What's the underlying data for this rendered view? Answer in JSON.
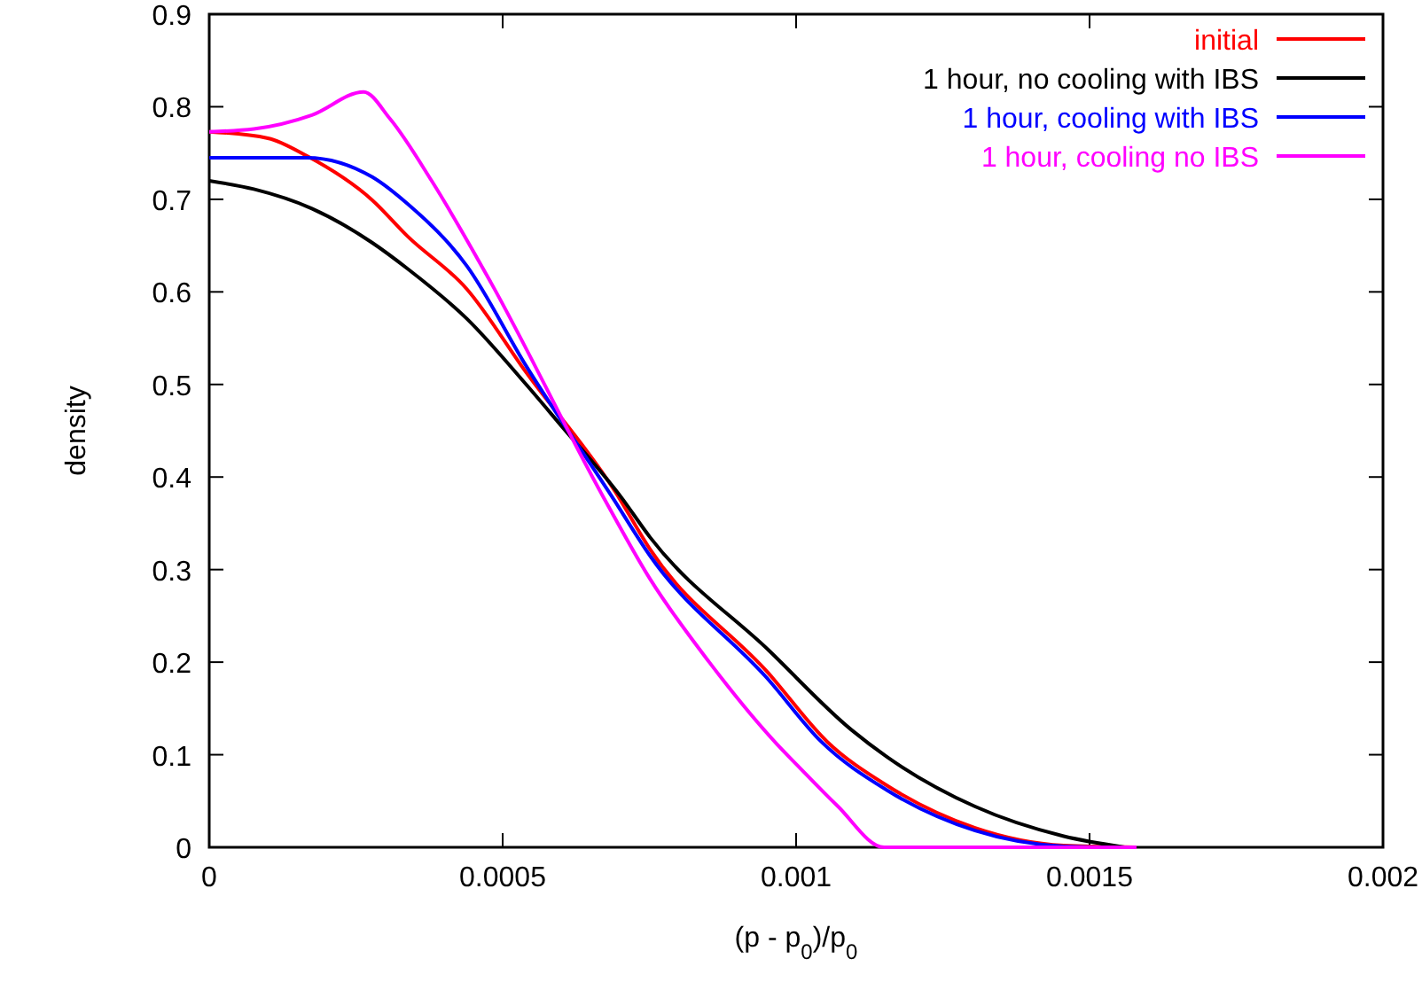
{
  "chart_data": {
    "type": "line",
    "xlabel": "(p - p$_{0}$)/p$_{0}$",
    "ylabel": "density",
    "xlim": [
      0,
      0.002
    ],
    "xticks": [
      0,
      0.0005,
      0.001,
      0.0015,
      0.002
    ],
    "ylim": [
      0,
      0.9
    ],
    "yticks": [
      0,
      0.1,
      0.2,
      0.3,
      0.4,
      0.5,
      0.6,
      0.7,
      0.8,
      0.9
    ],
    "grid": false,
    "legend": "top right",
    "marker": "none",
    "line_style": "solid",
    "series": [
      {
        "name": "initial",
        "color": "#ff0000",
        "x": [
          0,
          0.0001,
          0.000166,
          0.000278,
          0.000338,
          0.000439,
          0.00054,
          0.000691,
          0.000751,
          0.000953,
          0.001053,
          0.001154,
          0.001305,
          0.001456,
          0.00158
        ],
        "values": [
          0.773,
          0.766,
          0.747,
          0.699,
          0.66,
          0.603,
          0.513,
          0.385,
          0.322,
          0.188,
          0.114,
          0.067,
          0.021,
          0.002,
          0
        ]
      },
      {
        "name": "1 hour, no cooling with IBS",
        "color": "#000000",
        "x": [
          0,
          7.6e-05,
          0.000175,
          0.000278,
          0.000338,
          0.000439,
          0.00054,
          0.000595,
          0.000701,
          0.000751,
          0.000953,
          0.001094,
          0.001154,
          0.001305,
          0.001456,
          0.00156
        ],
        "values": [
          0.72,
          0.711,
          0.69,
          0.653,
          0.625,
          0.571,
          0.5,
          0.459,
          0.379,
          0.335,
          0.213,
          0.127,
          0.098,
          0.044,
          0.012,
          0
        ]
      },
      {
        "name": "1 hour, cooling with IBS",
        "color": "#0000ff",
        "x": [
          0,
          0.000166,
          0.000278,
          0.000338,
          0.000439,
          0.00054,
          0.000686,
          0.000751,
          0.000953,
          0.001043,
          0.001154,
          0.001305,
          0.001456,
          0.00152
        ],
        "values": [
          0.745,
          0.745,
          0.724,
          0.695,
          0.628,
          0.52,
          0.379,
          0.315,
          0.181,
          0.114,
          0.062,
          0.018,
          0.001,
          0
        ]
      },
      {
        "name": "1 hour, cooling no IBS",
        "color": "#ff00ff",
        "x": [
          0,
          7.6e-05,
          0.000175,
          0.000263,
          0.000308,
          0.000379,
          0.00048,
          0.000671,
          0.000751,
          0.000852,
          0.000968,
          0.001003,
          0.00107,
          0.00115,
          0.00158
        ],
        "values": [
          0.773,
          0.776,
          0.791,
          0.816,
          0.787,
          0.72,
          0.61,
          0.379,
          0.29,
          0.2,
          0.111,
          0.088,
          0.045,
          0,
          0
        ]
      }
    ]
  }
}
